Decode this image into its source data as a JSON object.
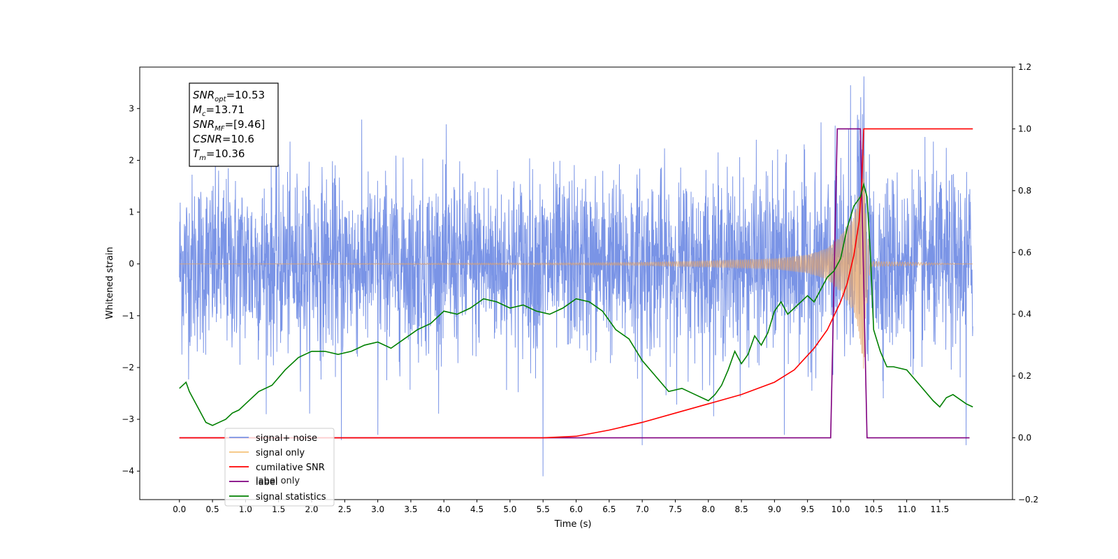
{
  "chart_data": {
    "type": "line",
    "xlabel": "Time (s)",
    "ylabel_left": "Whitened strain",
    "ylabel_right": "",
    "xlim": [
      -0.6,
      12.6
    ],
    "ylim_left": [
      -4.55,
      3.8
    ],
    "ylim_right": [
      -0.2,
      1.2
    ],
    "x_ticks": [
      0.0,
      0.5,
      1.0,
      1.5,
      2.0,
      2.5,
      3.0,
      3.5,
      4.0,
      4.5,
      5.0,
      5.5,
      6.0,
      6.5,
      7.0,
      7.5,
      8.0,
      8.5,
      9.0,
      9.5,
      10.0,
      10.5,
      11.0,
      11.5
    ],
    "x_tick_labels": [
      "0.0",
      "0.5",
      "1.0",
      "1.5",
      "2.0",
      "2.5",
      "3.0",
      "3.5",
      "4.0",
      "4.5",
      "5.0",
      "5.5",
      "6.0",
      "6.5",
      "7.0",
      "7.5",
      "8.0",
      "8.5",
      "9.0",
      "9.5",
      "10.0",
      "10.5",
      "11.0",
      "11.5"
    ],
    "y_ticks_left": [
      -4,
      -3,
      -2,
      -1,
      0,
      1,
      2,
      3
    ],
    "y_tick_labels_left": [
      "−4",
      "−3",
      "−2",
      "−1",
      "0",
      "1",
      "2",
      "3"
    ],
    "y_ticks_right": [
      -0.2,
      0.0,
      0.2,
      0.4,
      0.6,
      0.8,
      1.0,
      1.2
    ],
    "y_tick_labels_right": [
      "−0.2",
      "0.0",
      "0.2",
      "0.4",
      "0.6",
      "0.8",
      "1.0",
      "1.2"
    ],
    "info_box": {
      "lines": [
        {
          "main": "SNR",
          "sub": "opt",
          "value": "=10.53"
        },
        {
          "main": "M",
          "sub": "c",
          "value": "=13.71"
        },
        {
          "main": "SNR",
          "sub": "MF",
          "value": "=[9.46]"
        },
        {
          "main": "CSNR",
          "sub": "",
          "value": "=10.6"
        },
        {
          "main": "T",
          "sub": "m",
          "value": "=10.36"
        }
      ]
    },
    "legend": {
      "position": "lower-left",
      "entries": [
        {
          "label": "signal+ noise",
          "color": "#7a94e6"
        },
        {
          "label": "signal only",
          "color": "#f5c27a"
        },
        {
          "label": "cumilative SNR",
          "color": "#ff0000"
        },
        {
          "label": "label",
          "color": "#800080"
        },
        {
          "label": "signal statistics",
          "color": "#008000"
        }
      ],
      "overlapped_text": "label only"
    },
    "series": [
      {
        "name": "signal+ noise",
        "axis": "left",
        "color": "#7a94e6",
        "x_range": [
          0.0,
          12.0
        ],
        "typical_envelope": [
          -1.6,
          1.6
        ],
        "notable_peaks": [
          [
            2.45,
            -3.4
          ],
          [
            3.0,
            -3.3
          ],
          [
            5.5,
            -4.1
          ],
          [
            7.0,
            -3.5
          ],
          [
            9.15,
            -3.3
          ],
          [
            10.15,
            3.45
          ],
          [
            11.9,
            -3.5
          ]
        ]
      },
      {
        "name": "signal only",
        "axis": "left",
        "color": "#f5c27a",
        "note": "chirp waveform, merger peak near t=10.36",
        "envelope": [
          [
            0.0,
            0.0
          ],
          [
            6.0,
            0.02
          ],
          [
            7.0,
            0.03
          ],
          [
            8.0,
            0.06
          ],
          [
            9.0,
            0.1
          ],
          [
            9.5,
            0.18
          ],
          [
            9.8,
            0.3
          ],
          [
            10.0,
            0.55
          ],
          [
            10.2,
            0.95
          ],
          [
            10.3,
            1.5
          ],
          [
            10.35,
            2.2
          ],
          [
            10.38,
            1.0
          ],
          [
            10.45,
            0.05
          ],
          [
            12.0,
            0.0
          ]
        ]
      },
      {
        "name": "cumilative SNR",
        "axis": "right",
        "color": "#ff0000",
        "points": [
          [
            0.0,
            0.0
          ],
          [
            5.0,
            0.0
          ],
          [
            5.5,
            0.0
          ],
          [
            6.0,
            0.005
          ],
          [
            6.5,
            0.025
          ],
          [
            7.0,
            0.05
          ],
          [
            7.5,
            0.08
          ],
          [
            8.0,
            0.11
          ],
          [
            8.5,
            0.14
          ],
          [
            9.0,
            0.18
          ],
          [
            9.3,
            0.22
          ],
          [
            9.6,
            0.29
          ],
          [
            9.8,
            0.35
          ],
          [
            10.0,
            0.44
          ],
          [
            10.1,
            0.5
          ],
          [
            10.2,
            0.59
          ],
          [
            10.28,
            0.7
          ],
          [
            10.32,
            0.82
          ],
          [
            10.35,
            1.0
          ],
          [
            11.0,
            1.0
          ],
          [
            12.0,
            1.0
          ]
        ]
      },
      {
        "name": "label",
        "axis": "right",
        "color": "#800080",
        "points": [
          [
            0.0,
            0.0
          ],
          [
            9.85,
            0.0
          ],
          [
            9.95,
            1.0
          ],
          [
            10.3,
            1.0
          ],
          [
            10.4,
            0.0
          ],
          [
            11.95,
            0.0
          ]
        ]
      },
      {
        "name": "signal statistics",
        "axis": "right",
        "color": "#008000",
        "points": [
          [
            0.0,
            0.16
          ],
          [
            0.05,
            0.17
          ],
          [
            0.1,
            0.18
          ],
          [
            0.15,
            0.15
          ],
          [
            0.2,
            0.13
          ],
          [
            0.3,
            0.09
          ],
          [
            0.4,
            0.05
          ],
          [
            0.5,
            0.04
          ],
          [
            0.6,
            0.05
          ],
          [
            0.7,
            0.06
          ],
          [
            0.8,
            0.08
          ],
          [
            0.9,
            0.09
          ],
          [
            1.0,
            0.11
          ],
          [
            1.2,
            0.15
          ],
          [
            1.4,
            0.17
          ],
          [
            1.6,
            0.22
          ],
          [
            1.8,
            0.26
          ],
          [
            2.0,
            0.28
          ],
          [
            2.2,
            0.28
          ],
          [
            2.4,
            0.27
          ],
          [
            2.6,
            0.28
          ],
          [
            2.8,
            0.3
          ],
          [
            3.0,
            0.31
          ],
          [
            3.2,
            0.29
          ],
          [
            3.4,
            0.32
          ],
          [
            3.6,
            0.35
          ],
          [
            3.8,
            0.37
          ],
          [
            4.0,
            0.41
          ],
          [
            4.2,
            0.4
          ],
          [
            4.4,
            0.42
          ],
          [
            4.6,
            0.45
          ],
          [
            4.8,
            0.44
          ],
          [
            5.0,
            0.42
          ],
          [
            5.2,
            0.43
          ],
          [
            5.4,
            0.41
          ],
          [
            5.6,
            0.4
          ],
          [
            5.8,
            0.42
          ],
          [
            6.0,
            0.45
          ],
          [
            6.2,
            0.44
          ],
          [
            6.4,
            0.41
          ],
          [
            6.6,
            0.35
          ],
          [
            6.8,
            0.32
          ],
          [
            7.0,
            0.25
          ],
          [
            7.2,
            0.2
          ],
          [
            7.4,
            0.15
          ],
          [
            7.6,
            0.16
          ],
          [
            7.8,
            0.14
          ],
          [
            8.0,
            0.12
          ],
          [
            8.1,
            0.14
          ],
          [
            8.2,
            0.17
          ],
          [
            8.3,
            0.22
          ],
          [
            8.4,
            0.28
          ],
          [
            8.5,
            0.24
          ],
          [
            8.6,
            0.27
          ],
          [
            8.7,
            0.33
          ],
          [
            8.8,
            0.3
          ],
          [
            8.9,
            0.34
          ],
          [
            9.0,
            0.41
          ],
          [
            9.1,
            0.44
          ],
          [
            9.2,
            0.4
          ],
          [
            9.4,
            0.44
          ],
          [
            9.5,
            0.46
          ],
          [
            9.6,
            0.44
          ],
          [
            9.7,
            0.48
          ],
          [
            9.8,
            0.52
          ],
          [
            9.9,
            0.54
          ],
          [
            10.0,
            0.58
          ],
          [
            10.1,
            0.68
          ],
          [
            10.2,
            0.75
          ],
          [
            10.3,
            0.78
          ],
          [
            10.35,
            0.82
          ],
          [
            10.4,
            0.78
          ],
          [
            10.45,
            0.6
          ],
          [
            10.5,
            0.35
          ],
          [
            10.6,
            0.28
          ],
          [
            10.7,
            0.23
          ],
          [
            10.8,
            0.23
          ],
          [
            11.0,
            0.22
          ],
          [
            11.2,
            0.17
          ],
          [
            11.4,
            0.12
          ],
          [
            11.5,
            0.1
          ],
          [
            11.6,
            0.13
          ],
          [
            11.7,
            0.14
          ],
          [
            11.9,
            0.11
          ],
          [
            12.0,
            0.1
          ]
        ]
      }
    ]
  }
}
